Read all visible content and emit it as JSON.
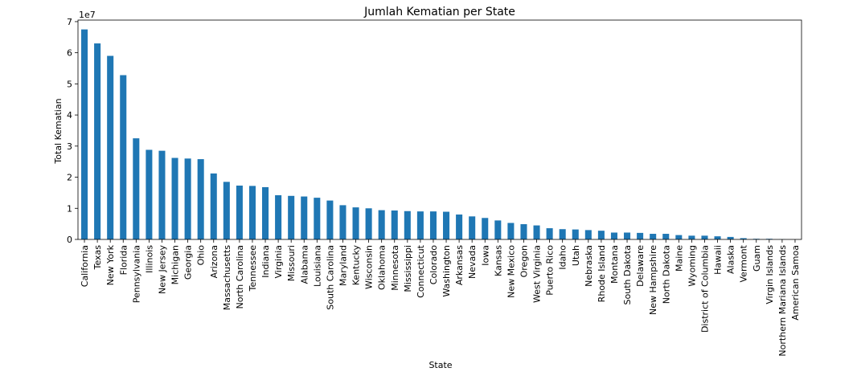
{
  "chart_data": {
    "type": "bar",
    "title": "Jumlah Kematian per State",
    "xlabel": "State",
    "ylabel": "Total Kematian",
    "y_offset_label": "1e7",
    "ylim": [
      0,
      70500000
    ],
    "yticks": [
      0,
      10000000,
      20000000,
      30000000,
      40000000,
      50000000,
      60000000,
      70000000
    ],
    "ytick_labels": [
      "0",
      "1",
      "2",
      "3",
      "4",
      "5",
      "6",
      "7"
    ],
    "grid": false,
    "bar_color": "#1f77b4",
    "categories": [
      "California",
      "Texas",
      "New York",
      "Florida",
      "Pennsylvania",
      "Illinois",
      "New Jersey",
      "Michigan",
      "Georgia",
      "Ohio",
      "Arizona",
      "Massachusetts",
      "North Carolina",
      "Tennessee",
      "Indiana",
      "Virginia",
      "Missouri",
      "Alabama",
      "Louisiana",
      "South Carolina",
      "Maryland",
      "Kentucky",
      "Wisconsin",
      "Oklahoma",
      "Minnesota",
      "Mississippi",
      "Connecticut",
      "Colorado",
      "Washington",
      "Arkansas",
      "Nevada",
      "Iowa",
      "Kansas",
      "New Mexico",
      "Oregon",
      "West Virginia",
      "Puerto Rico",
      "Idaho",
      "Utah",
      "Nebraska",
      "Rhode Island",
      "Montana",
      "South Dakota",
      "Delaware",
      "New Hampshire",
      "North Dakota",
      "Maine",
      "Wyoming",
      "District of Columbia",
      "Hawaii",
      "Alaska",
      "Vermont",
      "Guam",
      "Virgin Islands",
      "Northern Mariana Islands",
      "American Samoa"
    ],
    "values": [
      67500000,
      63000000,
      59000000,
      52800000,
      32500000,
      28800000,
      28500000,
      26200000,
      26000000,
      25800000,
      21200000,
      18500000,
      17300000,
      17200000,
      16800000,
      14200000,
      14000000,
      13800000,
      13400000,
      12500000,
      11000000,
      10300000,
      10000000,
      9400000,
      9300000,
      9100000,
      9000000,
      9000000,
      8900000,
      8000000,
      7400000,
      6900000,
      6100000,
      5300000,
      4900000,
      4500000,
      3600000,
      3300000,
      3200000,
      3000000,
      2800000,
      2200000,
      2200000,
      2100000,
      1800000,
      1800000,
      1400000,
      1200000,
      1200000,
      1000000,
      800000,
      400000,
      200000,
      200000,
      50000,
      10000
    ]
  }
}
